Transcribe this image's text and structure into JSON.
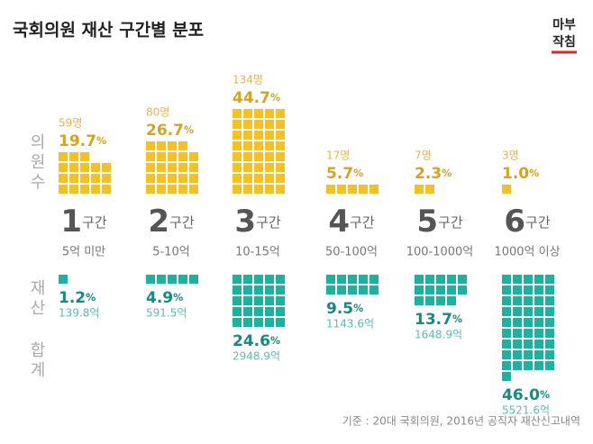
{
  "chart_data": {
    "type": "pictogram",
    "title": "국회의원 재산 구간별 분포",
    "brand": [
      "마부",
      "작침"
    ],
    "categories": [
      "1",
      "2",
      "3",
      "4",
      "5",
      "6"
    ],
    "category_suffix": "구간",
    "ranges": [
      "5억 미만",
      "5-10억",
      "10-15억",
      "50-100억",
      "100-1000억",
      "1000억 이상"
    ],
    "unit": "%",
    "series": [
      {
        "name": "의원수",
        "color": "#f5c021",
        "text_color": "#d9a21b",
        "sub_color": "#e2b54a",
        "values": [
          19.7,
          26.7,
          44.7,
          5.7,
          2.3,
          1.0
        ],
        "value_labels": [
          "19.7",
          "26.7",
          "44.7",
          "5.7",
          "2.3",
          "1.0"
        ],
        "counts": [
          59,
          80,
          134,
          17,
          7,
          3
        ],
        "count_labels": [
          "59명",
          "80명",
          "134명",
          "17명",
          "7명",
          "3명"
        ]
      },
      {
        "name": "재산 합계",
        "color": "#1bb3a0",
        "text_color": "#138c7e",
        "sub_color": "#5bbdb0",
        "values": [
          1.2,
          4.9,
          24.6,
          9.5,
          13.7,
          46.0
        ],
        "value_labels": [
          "1.2",
          "4.9",
          "24.6",
          "9.5",
          "13.7",
          "46.0"
        ],
        "counts": [
          139.8,
          591.5,
          2948.9,
          1143.6,
          1648.9,
          5521.6
        ],
        "count_labels": [
          "139.8억",
          "591.5억",
          "2948.9억",
          "1143.6억",
          "1648.9억",
          "5521.6억"
        ]
      }
    ],
    "source": "기준 : 20대 국회의원, 2016년 공직자 재산신고내역"
  }
}
